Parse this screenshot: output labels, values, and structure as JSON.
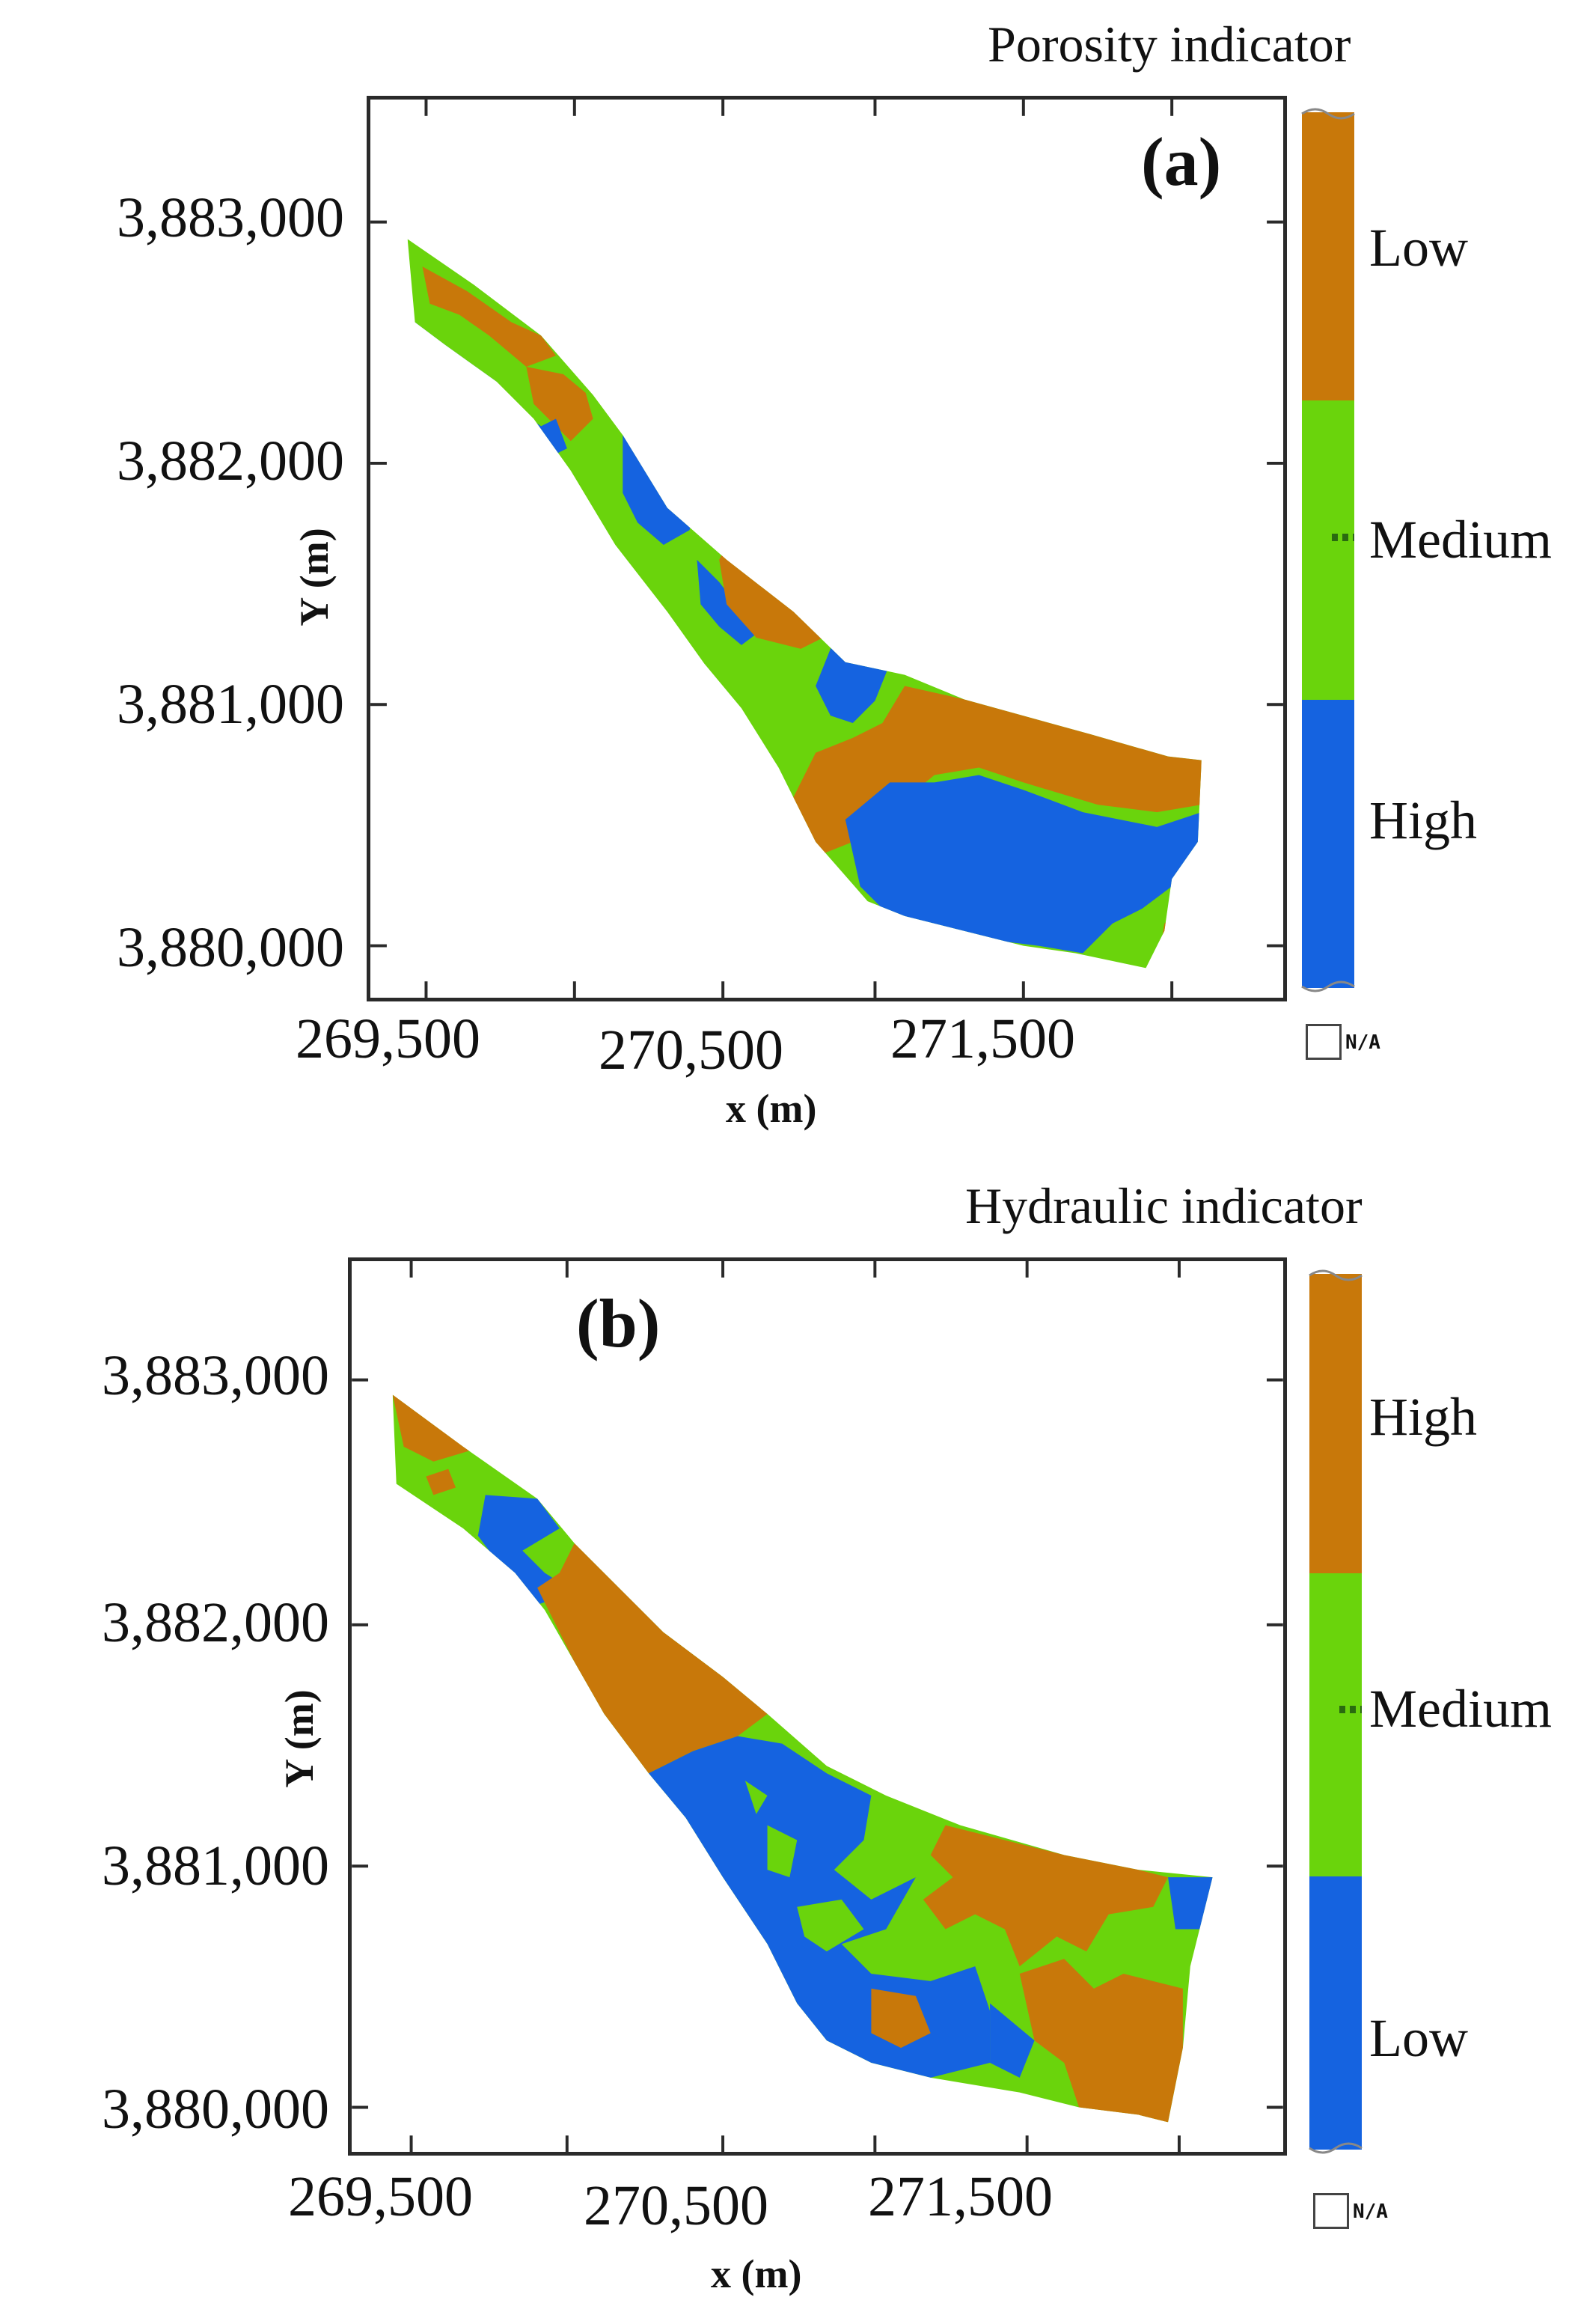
{
  "colors": {
    "low_porosity": "#c8780a",
    "medium": "#6ad40c",
    "high_porosity": "#1563e0",
    "frame": "#2a2a2a"
  },
  "panels": [
    {
      "id": "a",
      "letter": "(a)",
      "title": "Porosity indicator",
      "x_ticks": [
        "269,500",
        "270,500",
        "271,500"
      ],
      "y_ticks": [
        "3,883,000",
        "3,882,000",
        "3,881,000",
        "3,880,000"
      ],
      "x_label": "x (m)",
      "y_label": "Y (m)",
      "legend": [
        "Low",
        "Medium",
        "High"
      ],
      "legend_colors": [
        "#c8780a",
        "#6ad40c",
        "#1563e0"
      ],
      "na_label": "N/A"
    },
    {
      "id": "b",
      "letter": "(b)",
      "title": "Hydraulic indicator",
      "x_ticks": [
        "269,500",
        "270,500",
        "271,500"
      ],
      "y_ticks": [
        "3,883,000",
        "3,882,000",
        "3,881,000",
        "3,880,000"
      ],
      "x_label": "x (m)",
      "y_label": "Y (m)",
      "legend": [
        "High",
        "Medium",
        "Low"
      ],
      "legend_colors": [
        "#c8780a",
        "#6ad40c",
        "#1563e0"
      ],
      "na_label": "N/A"
    }
  ]
}
